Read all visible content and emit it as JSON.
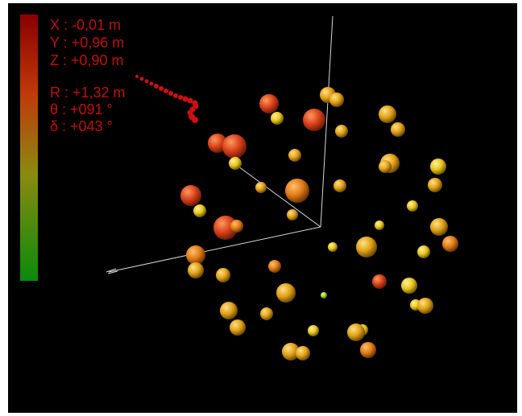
{
  "colorbar": {
    "top_color": "#8a0000",
    "upper_color": "#c03a0a",
    "mid_color": "#8a8a10",
    "bottom_color": "#0a8a0a"
  },
  "readout": {
    "color": "#c0100c",
    "x": "X : -0,01 m",
    "y": "Y : +0,96 m",
    "z": "Z : +0,90 m",
    "r": "R : +1,32 m",
    "theta": "θ : +091 °",
    "delta": "δ : +043 °"
  },
  "scene": {
    "axis_color": "#d8d8d8",
    "probe_color": "#cc1010",
    "sphere_palette": {
      "red_orange": "#d8401a",
      "orange": "#e07a14",
      "amber": "#e0a014",
      "yellow": "#e8c418",
      "lime": "#a8d418"
    }
  }
}
